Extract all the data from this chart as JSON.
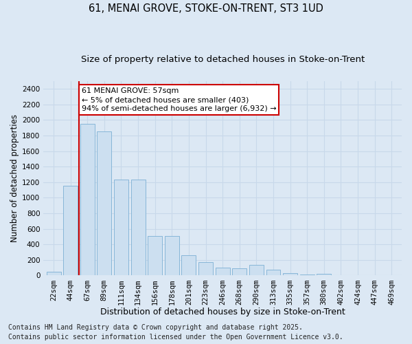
{
  "title1": "61, MENAI GROVE, STOKE-ON-TRENT, ST3 1UD",
  "title2": "Size of property relative to detached houses in Stoke-on-Trent",
  "xlabel": "Distribution of detached houses by size in Stoke-on-Trent",
  "ylabel": "Number of detached properties",
  "categories": [
    "22sqm",
    "44sqm",
    "67sqm",
    "89sqm",
    "111sqm",
    "134sqm",
    "156sqm",
    "178sqm",
    "201sqm",
    "223sqm",
    "246sqm",
    "268sqm",
    "290sqm",
    "313sqm",
    "335sqm",
    "357sqm",
    "380sqm",
    "402sqm",
    "424sqm",
    "447sqm",
    "469sqm"
  ],
  "values": [
    50,
    1150,
    1950,
    1850,
    1230,
    1230,
    510,
    510,
    265,
    170,
    100,
    90,
    140,
    75,
    30,
    10,
    20,
    5,
    5,
    5,
    5
  ],
  "bar_color": "#ccdff0",
  "bar_edge_color": "#7bafd4",
  "annotation_text": "61 MENAI GROVE: 57sqm\n← 5% of detached houses are smaller (403)\n94% of semi-detached houses are larger (6,932) →",
  "annotation_box_color": "#ffffff",
  "annotation_box_edge_color": "#cc0000",
  "vline_color": "#cc0000",
  "vline_x": 1.5,
  "ylim": [
    0,
    2500
  ],
  "yticks": [
    0,
    200,
    400,
    600,
    800,
    1000,
    1200,
    1400,
    1600,
    1800,
    2000,
    2200,
    2400
  ],
  "grid_color": "#c8d8ea",
  "bg_color": "#dce8f4",
  "footer1": "Contains HM Land Registry data © Crown copyright and database right 2025.",
  "footer2": "Contains public sector information licensed under the Open Government Licence v3.0.",
  "title1_fontsize": 10.5,
  "title2_fontsize": 9.5,
  "xlabel_fontsize": 9,
  "ylabel_fontsize": 8.5,
  "tick_fontsize": 7.5,
  "annotation_fontsize": 8,
  "footer_fontsize": 7
}
